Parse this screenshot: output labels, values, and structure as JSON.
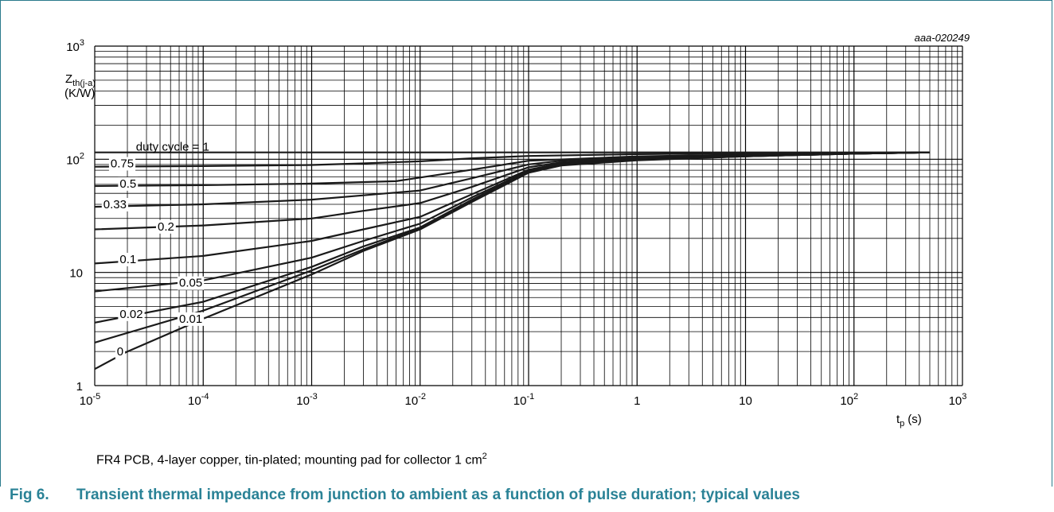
{
  "chart_data": {
    "type": "line",
    "code": "aaa-020249",
    "ylabel": {
      "symbol": "Z",
      "subscript": "th(j-a)",
      "unit": "(K/W)"
    },
    "xlabel": {
      "symbol": "t",
      "subscript": "p",
      "unit": "(s)"
    },
    "x_scale": "log",
    "y_scale": "log",
    "xlim": [
      1e-05,
      1000
    ],
    "ylim": [
      1,
      1000
    ],
    "grid": true,
    "x_ticks": [
      {
        "base": "10",
        "exp": "-5"
      },
      {
        "base": "10",
        "exp": "-4"
      },
      {
        "base": "10",
        "exp": "-3"
      },
      {
        "base": "10",
        "exp": "-2"
      },
      {
        "base": "10",
        "exp": "-1"
      },
      {
        "base": "1",
        "exp": ""
      },
      {
        "base": "10",
        "exp": ""
      },
      {
        "base": "10",
        "exp": "2"
      },
      {
        "base": "10",
        "exp": "3"
      }
    ],
    "y_ticks": [
      {
        "base": "1",
        "exp": ""
      },
      {
        "base": "10",
        "exp": ""
      },
      {
        "base": "10",
        "exp": "2"
      },
      {
        "base": "10",
        "exp": "3"
      }
    ],
    "series": [
      {
        "name": "duty cycle = 1",
        "x": [
          1e-05,
          500
        ],
        "y": [
          115,
          115
        ]
      },
      {
        "name": "0.75",
        "x": [
          1e-05,
          0.0001,
          0.001,
          0.003,
          0.01,
          0.03,
          0.1,
          1,
          10,
          100,
          500
        ],
        "y": [
          86,
          87,
          89,
          92,
          96,
          102,
          107,
          111,
          113,
          114,
          115
        ]
      },
      {
        "name": "0.5",
        "x": [
          1e-05,
          0.0001,
          0.001,
          0.006,
          0.01,
          0.03,
          0.1,
          1,
          10,
          100,
          500
        ],
        "y": [
          58,
          59,
          61,
          64,
          69,
          81,
          97,
          106,
          110,
          113,
          115
        ]
      },
      {
        "name": "0.33",
        "x": [
          1e-05,
          0.0001,
          0.001,
          0.003,
          0.01,
          0.03,
          0.1,
          0.2,
          1,
          10,
          100,
          500
        ],
        "y": [
          38,
          40,
          44,
          48,
          53,
          68,
          90,
          97,
          104,
          109,
          113,
          115
        ]
      },
      {
        "name": "0.2",
        "x": [
          1e-05,
          0.0001,
          0.001,
          0.003,
          0.01,
          0.03,
          0.1,
          0.2,
          1,
          10,
          100,
          500
        ],
        "y": [
          24,
          26,
          30,
          35,
          41,
          57,
          85,
          94,
          102,
          108,
          112,
          115
        ]
      },
      {
        "name": "0.1",
        "x": [
          1e-05,
          0.0001,
          0.001,
          0.003,
          0.01,
          0.03,
          0.1,
          0.2,
          1,
          10,
          100,
          500
        ],
        "y": [
          12,
          14,
          19,
          24,
          31,
          49,
          81,
          92,
          101,
          107,
          112,
          115
        ]
      },
      {
        "name": "0.05",
        "x": [
          1e-05,
          0.0001,
          0.001,
          0.003,
          0.01,
          0.03,
          0.1,
          0.2,
          1,
          10,
          100,
          500
        ],
        "y": [
          6.8,
          8.5,
          13.5,
          19,
          27,
          46,
          79,
          91,
          100,
          107,
          112,
          115
        ]
      },
      {
        "name": "0.02",
        "x": [
          1e-05,
          0.0001,
          0.001,
          0.003,
          0.01,
          0.03,
          0.1,
          0.2,
          1,
          10,
          100,
          500
        ],
        "y": [
          3.6,
          5.5,
          11.2,
          17,
          25,
          44,
          78,
          90,
          99,
          106,
          112,
          115
        ]
      },
      {
        "name": "0.01",
        "x": [
          1e-05,
          0.0001,
          0.001,
          0.003,
          0.01,
          0.03,
          0.1,
          0.2,
          1,
          10,
          100,
          500
        ],
        "y": [
          2.4,
          4.6,
          10.4,
          16,
          24.5,
          43,
          77,
          89,
          99,
          106,
          112,
          115
        ]
      },
      {
        "name": "0",
        "x": [
          1e-05,
          2e-05,
          0.0001,
          0.001,
          0.003,
          0.01,
          0.03,
          0.1,
          0.2,
          1,
          10,
          100,
          500
        ],
        "y": [
          1.4,
          2.0,
          3.9,
          9.6,
          15.5,
          24,
          42,
          76,
          88,
          98,
          106,
          112,
          115
        ]
      }
    ]
  },
  "note": {
    "text": "FR4 PCB, 4-layer copper, tin-plated; mounting pad for collector 1 cm",
    "sup": "2"
  },
  "caption": {
    "number": "Fig 6.",
    "title": "Transient thermal impedance from junction to ambient as a function of pulse duration; typical values"
  }
}
